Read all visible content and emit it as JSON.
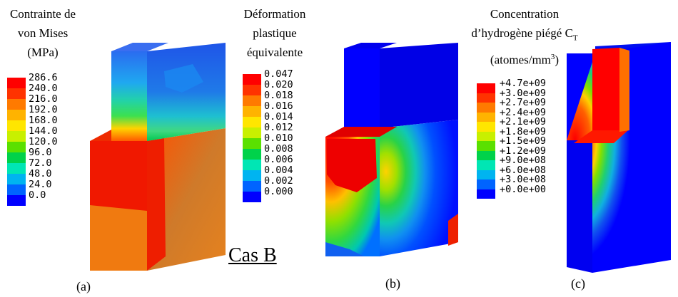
{
  "case_label": "Cas B",
  "panels": [
    {
      "id": "a",
      "caption": "(a)",
      "title_lines": [
        "Contrainte de",
        "von Mises",
        "(MPa)"
      ],
      "legend": {
        "labels": [
          "286.6",
          "240.0",
          "216.0",
          "192.0",
          "168.0",
          "144.0",
          "120.0",
          "96.0",
          "72.0",
          "48.0",
          "24.0",
          "0.0"
        ],
        "colors": [
          "#ff0000",
          "#ff3300",
          "#ff7a00",
          "#ffb300",
          "#ffe600",
          "#c8f000",
          "#5ae000",
          "#00d24a",
          "#00e6b4",
          "#00b4f0",
          "#0064ff",
          "#0000ff"
        ]
      }
    },
    {
      "id": "b",
      "caption": "(b)",
      "title_lines": [
        "Déformation",
        "plastique",
        "équivalente"
      ],
      "legend": {
        "labels": [
          "0.047",
          "0.020",
          "0.018",
          "0.016",
          "0.014",
          "0.012",
          "0.010",
          "0.008",
          "0.006",
          "0.004",
          "0.002",
          "0.000"
        ],
        "colors": [
          "#ff0000",
          "#ff3300",
          "#ff7a00",
          "#ffb300",
          "#ffe600",
          "#c8f000",
          "#5ae000",
          "#00d24a",
          "#00e6b4",
          "#00b4f0",
          "#0064ff",
          "#0000ff"
        ]
      }
    },
    {
      "id": "c",
      "caption": "(c)",
      "title_lines": [
        "Concentration",
        "d’hydrogène piégé C",
        "(atomes/mm"
      ],
      "title_sub": "T",
      "title_sup": "3",
      "title_close": ")",
      "legend": {
        "labels": [
          "+4.7e+09",
          "+3.0e+09",
          "+2.7e+09",
          "+2.4e+09",
          "+2.1e+09",
          "+1.8e+09",
          "+1.5e+09",
          "+1.2e+09",
          "+9.0e+08",
          "+6.0e+08",
          "+3.0e+08",
          "+0.0e+00"
        ],
        "colors": [
          "#ff0000",
          "#ff3300",
          "#ff7a00",
          "#ffb300",
          "#ffe600",
          "#c8f000",
          "#5ae000",
          "#00d24a",
          "#00e6b4",
          "#00b4f0",
          "#0064ff",
          "#0000ff"
        ]
      }
    }
  ]
}
